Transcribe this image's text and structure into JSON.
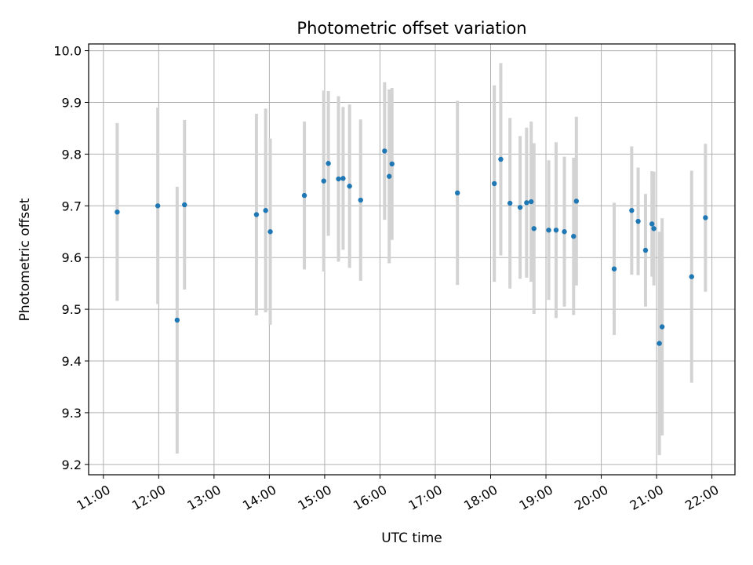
{
  "chart_data": {
    "type": "scatter",
    "title": "Photometric offset variation",
    "xlabel": "UTC time",
    "ylabel": "Photometric offset",
    "xlim": [
      "10:44",
      "22:25"
    ],
    "ylim": [
      9.18,
      10.013
    ],
    "grid": true,
    "x_ticks": [
      "11:00",
      "12:00",
      "13:00",
      "14:00",
      "15:00",
      "16:00",
      "17:00",
      "18:00",
      "19:00",
      "20:00",
      "21:00",
      "22:00"
    ],
    "y_ticks": [
      "9.2",
      "9.3",
      "9.4",
      "9.5",
      "9.6",
      "9.7",
      "9.8",
      "9.9",
      "10.0"
    ],
    "point_color": "#1f77b4",
    "errorbar_color": "#d3d3d3",
    "points": [
      {
        "x": "11:15",
        "y": 9.688,
        "err": 0.172
      },
      {
        "x": "11:59",
        "y": 9.7,
        "err": 0.19
      },
      {
        "x": "12:20",
        "y": 9.479,
        "err": 0.258
      },
      {
        "x": "12:28",
        "y": 9.702,
        "err": 0.164
      },
      {
        "x": "13:46",
        "y": 9.683,
        "err": 0.195
      },
      {
        "x": "13:56",
        "y": 9.691,
        "err": 0.197
      },
      {
        "x": "14:01",
        "y": 9.65,
        "err": 0.18
      },
      {
        "x": "14:38",
        "y": 9.72,
        "err": 0.143
      },
      {
        "x": "14:59",
        "y": 9.748,
        "err": 0.175
      },
      {
        "x": "15:04",
        "y": 9.782,
        "err": 0.14
      },
      {
        "x": "15:15",
        "y": 9.752,
        "err": 0.16
      },
      {
        "x": "15:20",
        "y": 9.753,
        "err": 0.138
      },
      {
        "x": "15:27",
        "y": 9.738,
        "err": 0.158
      },
      {
        "x": "15:39",
        "y": 9.711,
        "err": 0.156
      },
      {
        "x": "16:05",
        "y": 9.806,
        "err": 0.133
      },
      {
        "x": "16:10",
        "y": 9.757,
        "err": 0.168
      },
      {
        "x": "16:13",
        "y": 9.781,
        "err": 0.147
      },
      {
        "x": "17:24",
        "y": 9.725,
        "err": 0.178
      },
      {
        "x": "18:04",
        "y": 9.743,
        "err": 0.19
      },
      {
        "x": "18:11",
        "y": 9.79,
        "err": 0.186
      },
      {
        "x": "18:21",
        "y": 9.705,
        "err": 0.165
      },
      {
        "x": "18:32",
        "y": 9.697,
        "err": 0.138
      },
      {
        "x": "18:39",
        "y": 9.706,
        "err": 0.145
      },
      {
        "x": "18:44",
        "y": 9.708,
        "err": 0.155
      },
      {
        "x": "18:47",
        "y": 9.656,
        "err": 0.165
      },
      {
        "x": "19:03",
        "y": 9.653,
        "err": 0.135
      },
      {
        "x": "19:11",
        "y": 9.653,
        "err": 0.17
      },
      {
        "x": "19:20",
        "y": 9.65,
        "err": 0.145
      },
      {
        "x": "19:30",
        "y": 9.641,
        "err": 0.152
      },
      {
        "x": "19:33",
        "y": 9.709,
        "err": 0.163
      },
      {
        "x": "20:14",
        "y": 9.578,
        "err": 0.128
      },
      {
        "x": "20:33",
        "y": 9.691,
        "err": 0.124
      },
      {
        "x": "20:40",
        "y": 9.67,
        "err": 0.104
      },
      {
        "x": "20:48",
        "y": 9.614,
        "err": 0.109
      },
      {
        "x": "20:55",
        "y": 9.665,
        "err": 0.102
      },
      {
        "x": "20:57",
        "y": 9.656,
        "err": 0.11
      },
      {
        "x": "21:03",
        "y": 9.434,
        "err": 0.216
      },
      {
        "x": "21:06",
        "y": 9.466,
        "err": 0.21
      },
      {
        "x": "21:38",
        "y": 9.563,
        "err": 0.205
      },
      {
        "x": "21:53",
        "y": 9.677,
        "err": 0.143
      }
    ]
  }
}
